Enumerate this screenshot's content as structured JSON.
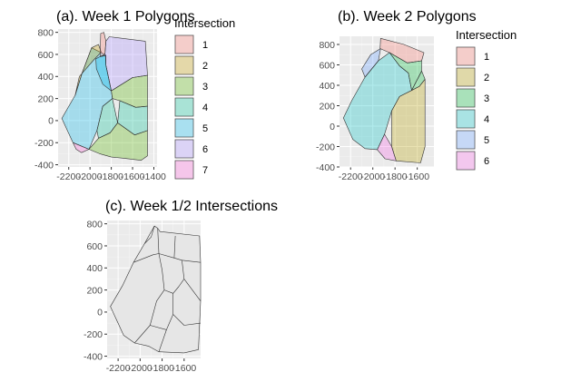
{
  "chart_data": [
    {
      "panel": "a",
      "type": "polygon-map",
      "title": "(a). Week 1 Polygons",
      "xlabel": "",
      "ylabel": "",
      "xlim": [
        -2300,
        -1370
      ],
      "ylim": [
        -420,
        830
      ],
      "x_ticks": [
        -2200,
        -2000,
        -1800,
        -1600,
        -1400
      ],
      "x_tick_labels": [
        "-2200",
        "-2000",
        "-1800",
        "-1600",
        "-1400"
      ],
      "y_ticks": [
        -400,
        -200,
        0,
        200,
        400,
        600,
        800
      ],
      "y_tick_labels": [
        "-400",
        "-200",
        "0",
        "200",
        "400",
        "600",
        "800"
      ],
      "legend": {
        "title": "Intersection",
        "placement": "right",
        "entries": [
          {
            "label": "1",
            "color": "#F8766D"
          },
          {
            "label": "2",
            "color": "#C49A00"
          },
          {
            "label": "3",
            "color": "#53B400"
          },
          {
            "label": "4",
            "color": "#00C094"
          },
          {
            "label": "5",
            "color": "#00B6EB"
          },
          {
            "label": "6",
            "color": "#A58AFF"
          },
          {
            "label": "7",
            "color": "#FB61D7"
          }
        ]
      },
      "polygons": [
        {
          "group": "5",
          "color": "#00B6EB",
          "points": [
            [
              -2265,
              20
            ],
            [
              -2140,
              230
            ],
            [
              -2075,
              430
            ],
            [
              -1985,
              660
            ],
            [
              -1850,
              595
            ],
            [
              -1850,
              500
            ],
            [
              -1800,
              270
            ],
            [
              -1790,
              200
            ],
            [
              -1880,
              130
            ],
            [
              -1935,
              -90
            ],
            [
              -2010,
              -260
            ],
            [
              -2160,
              -200
            ]
          ]
        },
        {
          "group": "2",
          "color": "#C49A00",
          "points": [
            [
              -2140,
              230
            ],
            [
              -2075,
              430
            ],
            [
              -1985,
              660
            ],
            [
              -1920,
              690
            ],
            [
              -1895,
              620
            ],
            [
              -1965,
              550
            ],
            [
              -2100,
              400
            ]
          ]
        },
        {
          "group": "1",
          "color": "#F8766D",
          "points": [
            [
              -1905,
              580
            ],
            [
              -1900,
              790
            ],
            [
              -1870,
              800
            ],
            [
              -1850,
              720
            ],
            [
              -1860,
              600
            ]
          ]
        },
        {
          "group": "6",
          "color": "#A58AFF",
          "points": [
            [
              -1905,
              580
            ],
            [
              -1860,
              600
            ],
            [
              -1850,
              720
            ],
            [
              -1820,
              760
            ],
            [
              -1480,
              720
            ],
            [
              -1460,
              410
            ],
            [
              -1600,
              390
            ],
            [
              -1800,
              270
            ],
            [
              -1850,
              500
            ],
            [
              -1855,
              590
            ]
          ]
        },
        {
          "group": "5",
          "color": "#00B6EB",
          "points": [
            [
              -1945,
              560
            ],
            [
              -1905,
              580
            ],
            [
              -1855,
              590
            ],
            [
              -1850,
              500
            ],
            [
              -1800,
              270
            ],
            [
              -1880,
              330
            ],
            [
              -1940,
              470
            ]
          ]
        },
        {
          "group": "3",
          "color": "#53B400",
          "points": [
            [
              -1800,
              270
            ],
            [
              -1600,
              390
            ],
            [
              -1460,
              410
            ],
            [
              -1460,
              130
            ],
            [
              -1570,
              120
            ],
            [
              -1720,
              180
            ],
            [
              -1790,
              200
            ]
          ]
        },
        {
          "group": "4",
          "color": "#00C094",
          "points": [
            [
              -1720,
              180
            ],
            [
              -1570,
              120
            ],
            [
              -1460,
              130
            ],
            [
              -1460,
              -90
            ],
            [
              -1580,
              -130
            ],
            [
              -1740,
              -20
            ]
          ]
        },
        {
          "group": "4",
          "color": "#00C094",
          "points": [
            [
              -1880,
              130
            ],
            [
              -1790,
              200
            ],
            [
              -1740,
              -20
            ],
            [
              -1810,
              -110
            ],
            [
              -1920,
              -160
            ],
            [
              -1935,
              -90
            ]
          ]
        },
        {
          "group": "3",
          "color": "#53B400",
          "points": [
            [
              -2010,
              -260
            ],
            [
              -1920,
              -160
            ],
            [
              -1810,
              -110
            ],
            [
              -1740,
              -20
            ],
            [
              -1580,
              -130
            ],
            [
              -1460,
              -90
            ],
            [
              -1460,
              -320
            ],
            [
              -1520,
              -360
            ],
            [
              -1690,
              -340
            ],
            [
              -1800,
              -330
            ],
            [
              -1910,
              -300
            ]
          ]
        },
        {
          "group": "7",
          "color": "#FB61D7",
          "points": [
            [
              -2160,
              -200
            ],
            [
              -2010,
              -260
            ],
            [
              -2080,
              -290
            ],
            [
              -2130,
              -260
            ]
          ]
        }
      ]
    },
    {
      "panel": "b",
      "type": "polygon-map",
      "title": "(b). Week 2 Polygons",
      "xlabel": "",
      "ylabel": "",
      "xlim": [
        -2300,
        -1450
      ],
      "ylim": [
        -400,
        880
      ],
      "x_ticks": [
        -2200,
        -2000,
        -1800,
        -1600
      ],
      "x_tick_labels": [
        "-2200",
        "-2000",
        "-1800",
        "-1600"
      ],
      "y_ticks": [
        -400,
        -200,
        0,
        200,
        400,
        600,
        800
      ],
      "y_tick_labels": [
        "-400",
        "-200",
        "0",
        "200",
        "400",
        "600",
        "800"
      ],
      "legend": {
        "title": "Intersection",
        "placement": "right",
        "entries": [
          {
            "label": "1",
            "color": "#F8766D"
          },
          {
            "label": "2",
            "color": "#B79F00"
          },
          {
            "label": "3",
            "color": "#00BA38"
          },
          {
            "label": "4",
            "color": "#00BFC4"
          },
          {
            "label": "5",
            "color": "#619CFF"
          },
          {
            "label": "6",
            "color": "#F564E3"
          }
        ]
      },
      "polygons": [
        {
          "group": "4",
          "color": "#00BFC4",
          "points": [
            [
              -2265,
              80
            ],
            [
              -2190,
              250
            ],
            [
              -2070,
              480
            ],
            [
              -1950,
              640
            ],
            [
              -1850,
              720
            ],
            [
              -1760,
              590
            ],
            [
              -1680,
              520
            ],
            [
              -1650,
              350
            ],
            [
              -1760,
              290
            ],
            [
              -1830,
              150
            ],
            [
              -1895,
              -80
            ],
            [
              -1960,
              -230
            ],
            [
              -2070,
              -220
            ],
            [
              -2180,
              -130
            ]
          ]
        },
        {
          "group": "5",
          "color": "#619CFF",
          "points": [
            [
              -2070,
              480
            ],
            [
              -1950,
              640
            ],
            [
              -1930,
              760
            ],
            [
              -2020,
              700
            ],
            [
              -2100,
              560
            ]
          ]
        },
        {
          "group": "1",
          "color": "#F8766D",
          "points": [
            [
              -1930,
              860
            ],
            [
              -1720,
              800
            ],
            [
              -1540,
              720
            ],
            [
              -1560,
              640
            ],
            [
              -1690,
              620
            ],
            [
              -1850,
              720
            ],
            [
              -1935,
              760
            ]
          ]
        },
        {
          "group": "3",
          "color": "#00BA38",
          "points": [
            [
              -1850,
              720
            ],
            [
              -1690,
              620
            ],
            [
              -1560,
              640
            ],
            [
              -1560,
              540
            ],
            [
              -1650,
              350
            ],
            [
              -1680,
              520
            ],
            [
              -1760,
              590
            ]
          ]
        },
        {
          "group": "3",
          "color": "#00BA38",
          "points": [
            [
              -1650,
              350
            ],
            [
              -1560,
              540
            ],
            [
              -1530,
              460
            ],
            [
              -1580,
              390
            ]
          ]
        },
        {
          "group": "2",
          "color": "#B79F00",
          "points": [
            [
              -1650,
              350
            ],
            [
              -1580,
              390
            ],
            [
              -1530,
              460
            ],
            [
              -1530,
              -200
            ],
            [
              -1570,
              -360
            ],
            [
              -1790,
              -340
            ],
            [
              -1830,
              -200
            ],
            [
              -1830,
              150
            ],
            [
              -1760,
              290
            ]
          ]
        },
        {
          "group": "6",
          "color": "#F564E3",
          "points": [
            [
              -1960,
              -230
            ],
            [
              -1895,
              -80
            ],
            [
              -1830,
              -200
            ],
            [
              -1790,
              -340
            ],
            [
              -1890,
              -320
            ]
          ]
        }
      ]
    },
    {
      "panel": "c",
      "type": "polygon-map",
      "title": "(c). Week 1/2 Intersections",
      "xlabel": "",
      "ylabel": "",
      "xlim": [
        -2300,
        -1450
      ],
      "ylim": [
        -420,
        830
      ],
      "x_ticks": [
        -2200,
        -2000,
        -1800,
        -1600
      ],
      "x_tick_labels": [
        "-2200",
        "-2000",
        "-1800",
        "-1600"
      ],
      "y_ticks": [
        -400,
        -200,
        0,
        200,
        400,
        600,
        800
      ],
      "y_tick_labels": [
        "-400",
        "-200",
        "0",
        "200",
        "400",
        "600",
        "800"
      ],
      "fill": "#e6e6e6",
      "polygons": [
        {
          "group": "all",
          "color": "#e6e6e6",
          "points": [
            [
              -2270,
              50
            ],
            [
              -2160,
              240
            ],
            [
              -2060,
              450
            ],
            [
              -1960,
              620
            ],
            [
              -1900,
              680
            ],
            [
              -1870,
              780
            ],
            [
              -1840,
              760
            ],
            [
              -1820,
              730
            ],
            [
              -1460,
              690
            ],
            [
              -1450,
              450
            ],
            [
              -1450,
              100
            ],
            [
              -1470,
              -340
            ],
            [
              -1600,
              -370
            ],
            [
              -1830,
              -360
            ],
            [
              -1920,
              -310
            ],
            [
              -2050,
              -280
            ],
            [
              -2150,
              -210
            ]
          ]
        }
      ],
      "edges": [
        [
          [
            -1960,
            620
          ],
          [
            -1870,
            780
          ]
        ],
        [
          [
            -1840,
            760
          ],
          [
            -1830,
            530
          ]
        ],
        [
          [
            -2060,
            450
          ],
          [
            -1880,
            520
          ],
          [
            -1830,
            530
          ],
          [
            -1800,
            380
          ],
          [
            -1780,
            200
          ],
          [
            -1850,
            100
          ],
          [
            -1910,
            -120
          ],
          [
            -2050,
            -280
          ]
        ],
        [
          [
            -1830,
            530
          ],
          [
            -1690,
            490
          ],
          [
            -1620,
            470
          ],
          [
            -1450,
            450
          ]
        ],
        [
          [
            -1780,
            200
          ],
          [
            -1700,
            170
          ],
          [
            -1650,
            230
          ],
          [
            -1600,
            300
          ],
          [
            -1620,
            470
          ]
        ],
        [
          [
            -1700,
            170
          ],
          [
            -1700,
            -20
          ],
          [
            -1760,
            -160
          ],
          [
            -1830,
            -360
          ]
        ],
        [
          [
            -1910,
            -120
          ],
          [
            -1760,
            -160
          ]
        ],
        [
          [
            -1600,
            300
          ],
          [
            -1450,
            100
          ]
        ],
        [
          [
            -1700,
            -20
          ],
          [
            -1600,
            -120
          ],
          [
            -1450,
            -100
          ]
        ],
        [
          [
            -1690,
            490
          ],
          [
            -1680,
            690
          ]
        ]
      ]
    }
  ]
}
